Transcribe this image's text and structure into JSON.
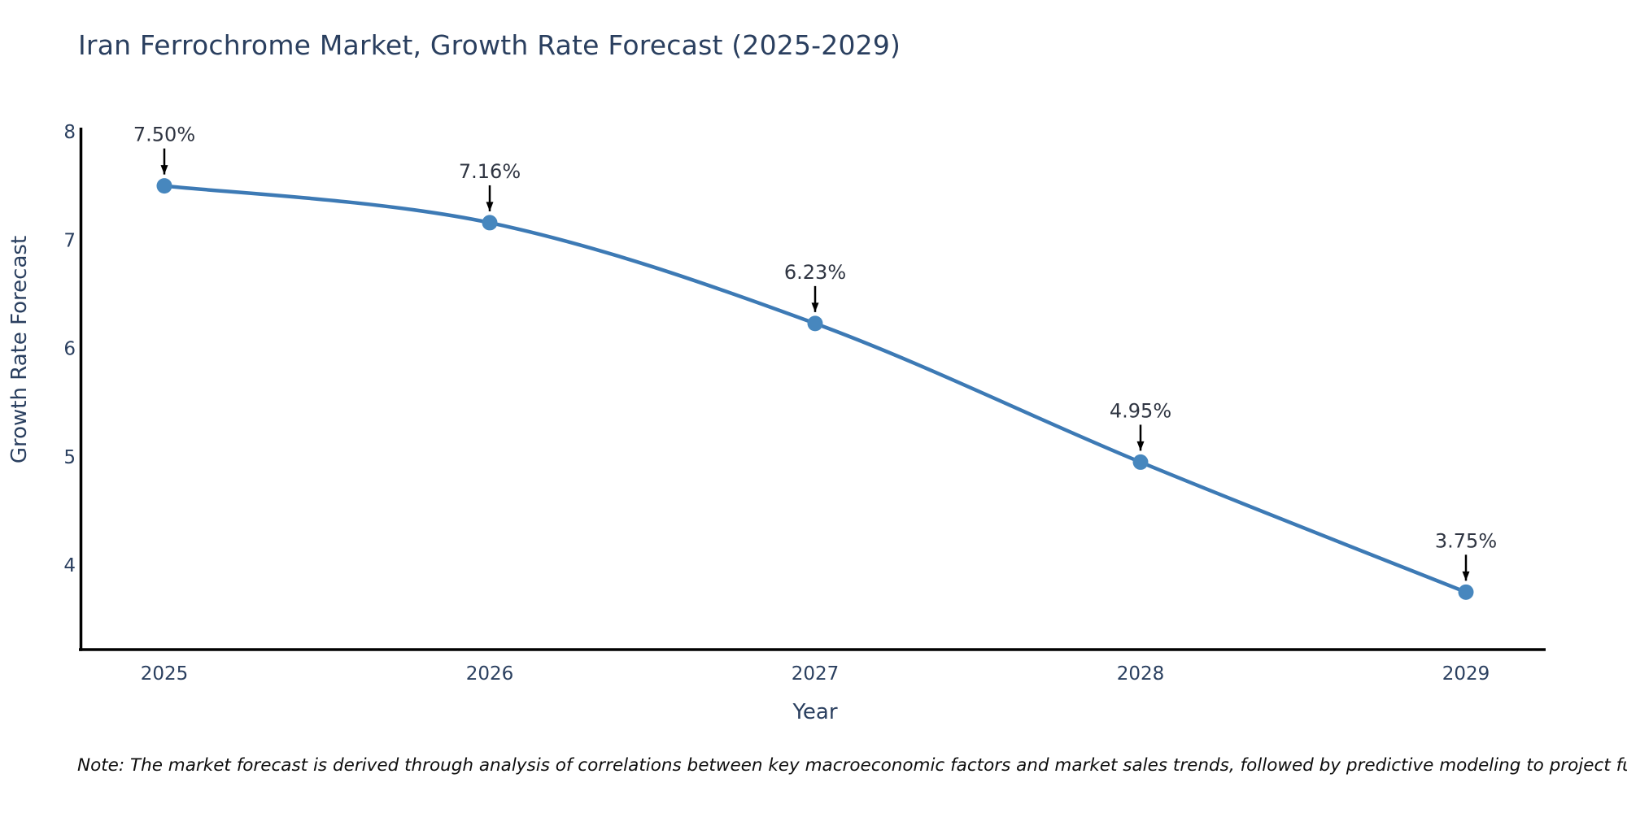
{
  "chart_data": {
    "type": "line",
    "title": "Iran Ferrochrome Market, Growth Rate Forecast (2025-2029)",
    "xlabel": "Year",
    "ylabel": "Growth Rate Forecast",
    "x": [
      2025,
      2026,
      2027,
      2028,
      2029
    ],
    "y": [
      7.5,
      7.16,
      6.23,
      4.95,
      3.75
    ],
    "point_labels": [
      "7.50%",
      "7.16%",
      "6.23%",
      "4.95%",
      "3.75%"
    ],
    "y_ticks": [
      8,
      7,
      6,
      5,
      4
    ],
    "x_tick_labels": [
      "2025",
      "2026",
      "2027",
      "2028",
      "2029"
    ],
    "y_range": [
      3.21,
      8.04
    ],
    "x_range": [
      2024.74,
      2029.26
    ],
    "grid": false,
    "legend_position": "none",
    "line_shape": "spline",
    "colors": {
      "line": "#3d7ab5",
      "marker": "#4787be",
      "axis": "#000000",
      "text": "#2a3f5f",
      "annotation": "#2f3542",
      "note": "#0d0d0d",
      "background": "#ffffff"
    },
    "note": "Note: The market forecast is derived through analysis of correlations between key macroeconomic factors and market sales trends, followed by predictive modeling to project future sales."
  }
}
